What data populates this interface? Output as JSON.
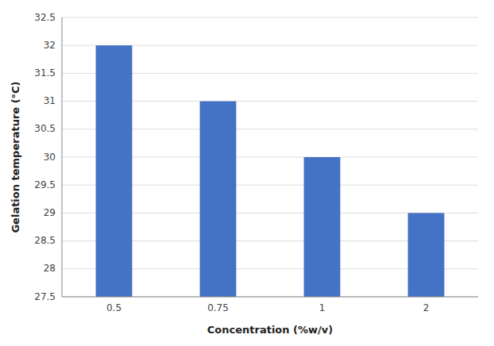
{
  "chart_data": {
    "type": "bar",
    "categories": [
      "0.5",
      "0.75",
      "1",
      "2"
    ],
    "values": [
      32,
      31,
      30,
      29
    ],
    "color": "#4472C4",
    "xlabel": "Concentration (%w/v)",
    "ylabel": "Gelation temperature (°C)",
    "ylim": [
      27.5,
      32.5
    ],
    "yticks": [
      27.5,
      28,
      28.5,
      29,
      29.5,
      30,
      30.5,
      31,
      31.5,
      32,
      32.5
    ],
    "grid": true
  }
}
